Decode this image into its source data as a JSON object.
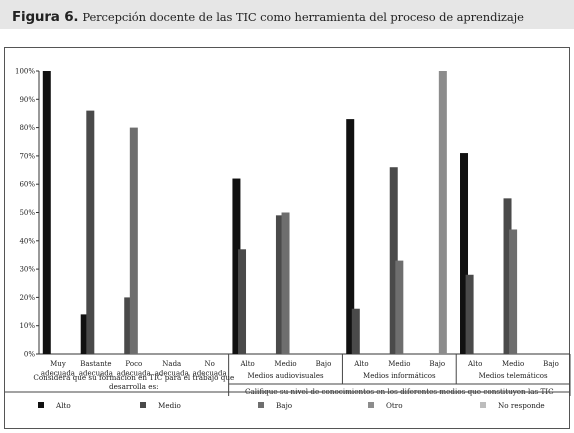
{
  "figure": {
    "label": "Figura 6.",
    "title": "Percepción docente de las TIC como herramienta del proceso de aprendizaje"
  },
  "chart_data": {
    "type": "bar",
    "ylim": [
      0,
      100
    ],
    "y_ticks": [
      "0%",
      "10%",
      "20%",
      "30%",
      "40%",
      "50%",
      "60%",
      "70%",
      "80%",
      "90%",
      "100%"
    ],
    "grid": false,
    "legend_position": "bottom",
    "series_legend": [
      {
        "name": "Alto",
        "color": "#111111"
      },
      {
        "name": "Medio",
        "color": "#4a4a4a"
      },
      {
        "name": "Bajo",
        "color": "#6e6e6e"
      },
      {
        "name": "Otro",
        "color": "#8c8c8c"
      },
      {
        "name": "No responde",
        "color": "#bdbdbd"
      }
    ],
    "groups": [
      {
        "question": "Considera que su formación en TIC para el trabajo que desarrolla es:",
        "categories": [
          {
            "label": "Muy adecuada",
            "bars": [
              {
                "series": "Alto",
                "value": 100
              }
            ]
          },
          {
            "label": "Bastante adecuada",
            "bars": [
              {
                "series": "Alto",
                "value": 14
              },
              {
                "series": "Medio",
                "value": 86
              }
            ]
          },
          {
            "label": "Poco adecuada",
            "bars": [
              {
                "series": "Medio",
                "value": 20
              },
              {
                "series": "Bajo",
                "value": 80
              }
            ]
          },
          {
            "label": "Nada adecuada",
            "bars": []
          },
          {
            "label": "No adecuada",
            "bars": []
          }
        ]
      },
      {
        "question": "Califique su nivel de conocimientos en los diferentes medios que constituyen las TIC",
        "subgroups": [
          {
            "name": "Medios audiovisuales",
            "categories": [
              {
                "label": "Alto",
                "bars": [
                  {
                    "series": "Alto",
                    "value": 62
                  },
                  {
                    "series": "Medio",
                    "value": 37
                  }
                ]
              },
              {
                "label": "Medio",
                "bars": [
                  {
                    "series": "Medio",
                    "value": 49
                  },
                  {
                    "series": "Bajo",
                    "value": 50
                  }
                ]
              },
              {
                "label": "Bajo",
                "bars": []
              }
            ]
          },
          {
            "name": "Medios informáticos",
            "categories": [
              {
                "label": "Alto",
                "bars": [
                  {
                    "series": "Alto",
                    "value": 83
                  },
                  {
                    "series": "Medio",
                    "value": 16
                  }
                ]
              },
              {
                "label": "Medio",
                "bars": [
                  {
                    "series": "Medio",
                    "value": 66
                  },
                  {
                    "series": "Bajo",
                    "value": 33
                  }
                ]
              },
              {
                "label": "Bajo",
                "bars": [
                  {
                    "series": "Otro",
                    "value": 100
                  }
                ]
              }
            ]
          },
          {
            "name": "Medios telemáticos",
            "categories": [
              {
                "label": "Alto",
                "bars": [
                  {
                    "series": "Alto",
                    "value": 71
                  },
                  {
                    "series": "Medio",
                    "value": 28
                  }
                ]
              },
              {
                "label": "Medio",
                "bars": [
                  {
                    "series": "Medio",
                    "value": 55
                  },
                  {
                    "series": "Bajo",
                    "value": 44
                  }
                ]
              },
              {
                "label": "Bajo",
                "bars": []
              }
            ]
          }
        ]
      }
    ]
  }
}
